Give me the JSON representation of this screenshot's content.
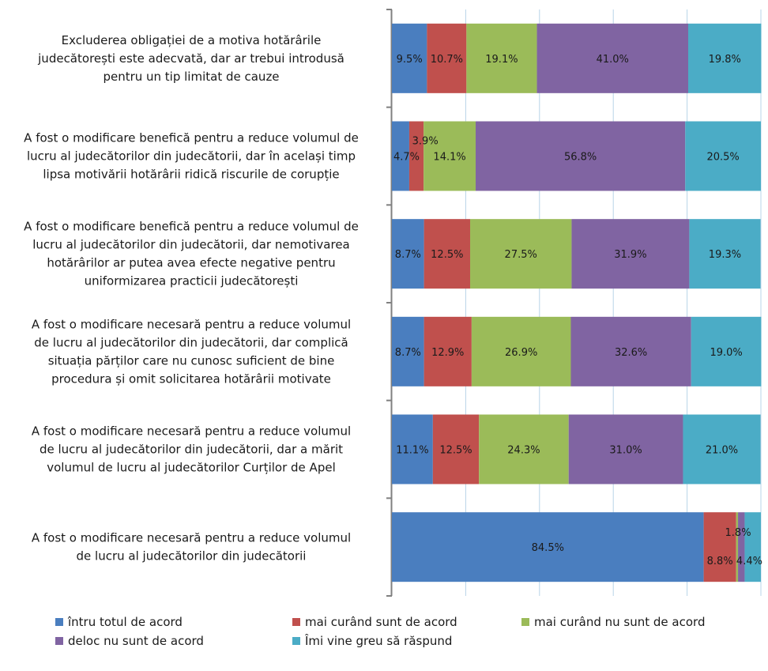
{
  "chart_data": {
    "type": "bar",
    "orientation": "horizontal",
    "stacked": "percent",
    "categories": [
      "Excluderea obligației de a motiva hotărârile judecătorești este adecvată, dar ar trebui introdusă pentru un tip limitat de cauze",
      "A fost o modificare benefică pentru a reduce volumul de lucru al judecătorilor din judecătorii, dar în același timp lipsa motivării hotărârii ridică riscurile de corupție",
      "A fost o modificare benefică pentru a reduce volumul de lucru al judecătorilor din judecătorii, dar nemotivarea hotărârilor ar putea avea efecte negative pentru uniformizarea practicii judecătorești",
      "A fost o modificare necesară pentru a reduce volumul de lucru al judecătorilor din judecătorii, dar complică situația părților care nu cunosc suficient de bine procedura și omit solicitarea hotărârii motivate",
      "A fost o modificare necesară pentru a reduce volumul de lucru al judecătorilor din judecătorii, dar a mărit volumul de lucru al judecătorilor Curților de Apel",
      "A fost o modificare necesară pentru a reduce volumul de lucru al judecătorilor din judecătorii"
    ],
    "category_lines": [
      [
        "Excluderea obligației de a motiva hotărârile",
        "judecătorești este adecvată, dar ar trebui introdusă",
        "pentru un tip limitat de cauze"
      ],
      [
        "A fost o modificare benefică pentru a reduce volumul de",
        "lucru al judecătorilor din judecătorii, dar în același timp",
        "lipsa motivării hotărârii ridică riscurile de corupție"
      ],
      [
        "A fost o modificare benefică pentru a reduce volumul de",
        "lucru al judecătorilor din judecătorii, dar nemotivarea",
        "hotărârilor ar putea avea efecte negative pentru",
        "uniformizarea practicii judecătorești"
      ],
      [
        "A fost o modificare necesară pentru a reduce volumul",
        "de lucru al judecătorilor din judecătorii, dar complică",
        "situația părților care nu cunosc suficient de bine",
        "procedura și omit solicitarea hotărârii motivate"
      ],
      [
        "A fost o modificare necesară pentru a reduce volumul",
        "de lucru al judecătorilor din judecătorii, dar a mărit",
        "volumul de lucru al judecătorilor Curților de Apel"
      ],
      [
        "A fost o modificare necesară pentru a reduce volumul",
        "de lucru al judecătorilor din judecătorii"
      ]
    ],
    "series": [
      {
        "name": "întru totul de acord",
        "color": "#4a7ebf",
        "values": [
          9.5,
          4.7,
          8.7,
          8.7,
          11.1,
          84.5
        ]
      },
      {
        "name": "mai curând sunt de acord",
        "color": "#c0504d",
        "values": [
          10.7,
          3.9,
          12.5,
          12.9,
          12.5,
          8.8
        ]
      },
      {
        "name": "mai curând nu sunt de acord",
        "color": "#9bbb59",
        "values": [
          19.1,
          14.1,
          27.5,
          26.9,
          24.3,
          0.5
        ]
      },
      {
        "name": "deloc nu sunt de acord",
        "color": "#8064a2",
        "values": [
          41.0,
          56.8,
          31.9,
          32.6,
          31.0,
          1.8
        ]
      },
      {
        "name": "Îmi vine greu să răspund",
        "color": "#4bacc6",
        "values": [
          19.8,
          20.5,
          19.3,
          19.0,
          21.0,
          4.4
        ]
      }
    ],
    "data_labels": [
      [
        "9.5%",
        "10.7%",
        "19.1%",
        "41.0%",
        "19.8%"
      ],
      [
        "4.7%",
        "3.9%",
        "14.1%",
        "56.8%",
        "20.5%"
      ],
      [
        "8.7%",
        "12.5%",
        "27.5%",
        "31.9%",
        "19.3%"
      ],
      [
        "8.7%",
        "12.9%",
        "26.9%",
        "32.6%",
        "19.0%"
      ],
      [
        "11.1%",
        "12.5%",
        "24.3%",
        "31.0%",
        "21.0%"
      ],
      [
        "84.5%",
        "8.8%",
        "",
        "1.8%",
        "4.4%"
      ]
    ],
    "xlim": [
      0,
      100
    ],
    "grid": true,
    "legend_position": "bottom",
    "title": "",
    "xlabel": "",
    "ylabel": ""
  },
  "legend": {
    "items": [
      "întru totul de acord",
      "mai curând sunt de acord",
      "mai curând nu sunt de acord",
      "deloc nu sunt de acord",
      "Îmi vine greu să răspund"
    ]
  },
  "colors": {
    "grid": "#b8d4e8",
    "axis": "#808080"
  }
}
